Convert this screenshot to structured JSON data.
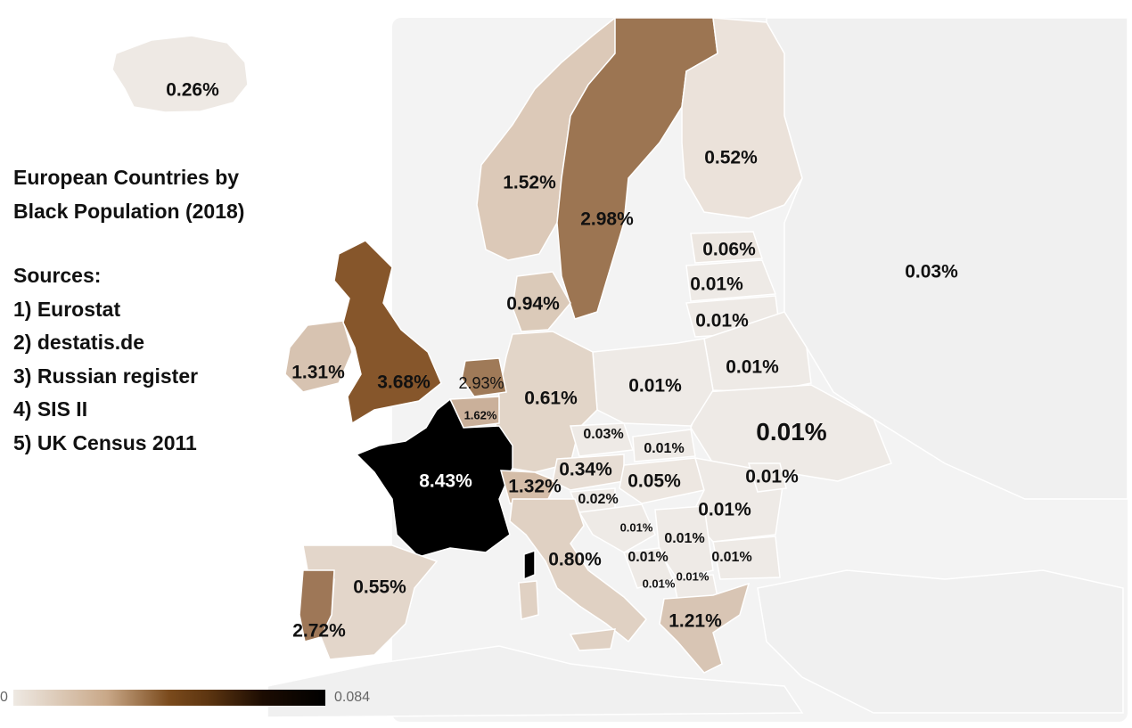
{
  "info": {
    "title_line1": "European Countries by",
    "title_line2": "Black Population (2018)",
    "sources_heading": "Sources:",
    "sources": [
      "1) Eurostat",
      "2) destatis.de",
      "3) Russian register",
      "4) SIS II",
      "5) UK Census 2011"
    ]
  },
  "legend": {
    "min_label": "0",
    "max_label": "0.084"
  },
  "colors": {
    "no_data": "#f0f0f0",
    "very_low": "#ebe3dc",
    "low": "#dac6b6",
    "mid": "#a07a59",
    "high": "#8b5a2b",
    "top": "#000000",
    "border": "#ffffff"
  },
  "labels": {
    "iceland": "0.26%",
    "norway": "1.52%",
    "sweden": "2.98%",
    "finland": "0.52%",
    "russia": "0.03%",
    "estonia": "0.06%",
    "latvia": "0.01%",
    "lithuania": "0.01%",
    "belarus": "0.01%",
    "denmark": "0.94%",
    "ireland": "1.31%",
    "uk": "3.68%",
    "netherlands": "2.93%",
    "belgium": "1.62%",
    "germany": "0.61%",
    "poland": "0.01%",
    "ukraine": "0.01%",
    "czechia": "0.03%",
    "slovakia": "0.01%",
    "austria": "0.34%",
    "hungary": "0.05%",
    "moldova": "0.01%",
    "romania": "0.01%",
    "slovenia": "0.02%",
    "switzerland": "1.32%",
    "france": "8.43%",
    "croatia": "0.01%",
    "bosnia": "0.01%",
    "serbia": "0.01%",
    "bulgaria": "0.01%",
    "montenegro": "0.01%",
    "macedonia": "0.01%",
    "italy": "0.80%",
    "spain": "0.55%",
    "portugal": "2.72%",
    "greece": "1.21%"
  }
}
